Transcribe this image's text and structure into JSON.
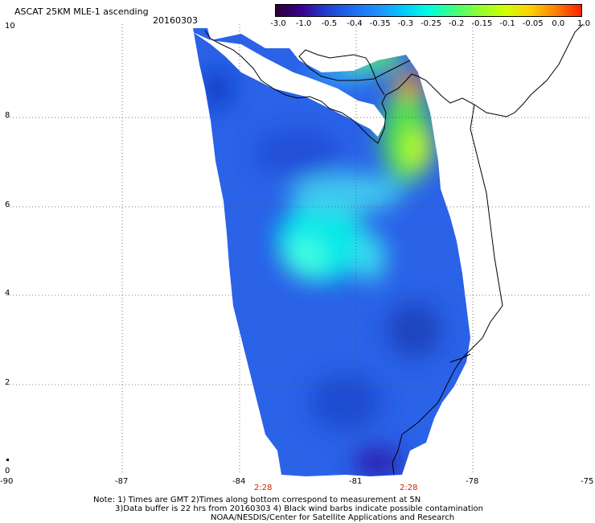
{
  "header": {
    "title": "ASCAT 25KM MLE-1 ascending",
    "date": "20160303"
  },
  "colorbar": {
    "labels": [
      "-3.0",
      "-1.0",
      "-0.5",
      "-0.4",
      "-0.35",
      "-0.3",
      "-0.25",
      "-0.2",
      "-0.15",
      "-0.1",
      "-0.05",
      "0.0",
      "1.0"
    ],
    "colors": [
      "#2a0030",
      "#3a0090",
      "#2040d0",
      "#1e6cf0",
      "#1e90ff",
      "#00c8ff",
      "#00ffe0",
      "#40ff80",
      "#90ff30",
      "#d0ff00",
      "#ffd000",
      "#ff8000",
      "#ff2000"
    ]
  },
  "axes": {
    "x_ticks": [
      "-90",
      "-87",
      "-84",
      "-81",
      "-78",
      "-75"
    ],
    "y_ticks": [
      "10",
      "8",
      "6",
      "4",
      "2",
      "0"
    ]
  },
  "time_labels": [
    "2:28",
    "2:28"
  ],
  "notes": [
    "Note: 1) Times are GMT 2)Times along bottom correspond to measurement at 5N",
    "3)Data buffer is 22 hrs from 20160303 4) Black wind barbs indicate possible contamination",
    "NOAA/NESDIS/Center for Satellite Applications and Research"
  ]
}
